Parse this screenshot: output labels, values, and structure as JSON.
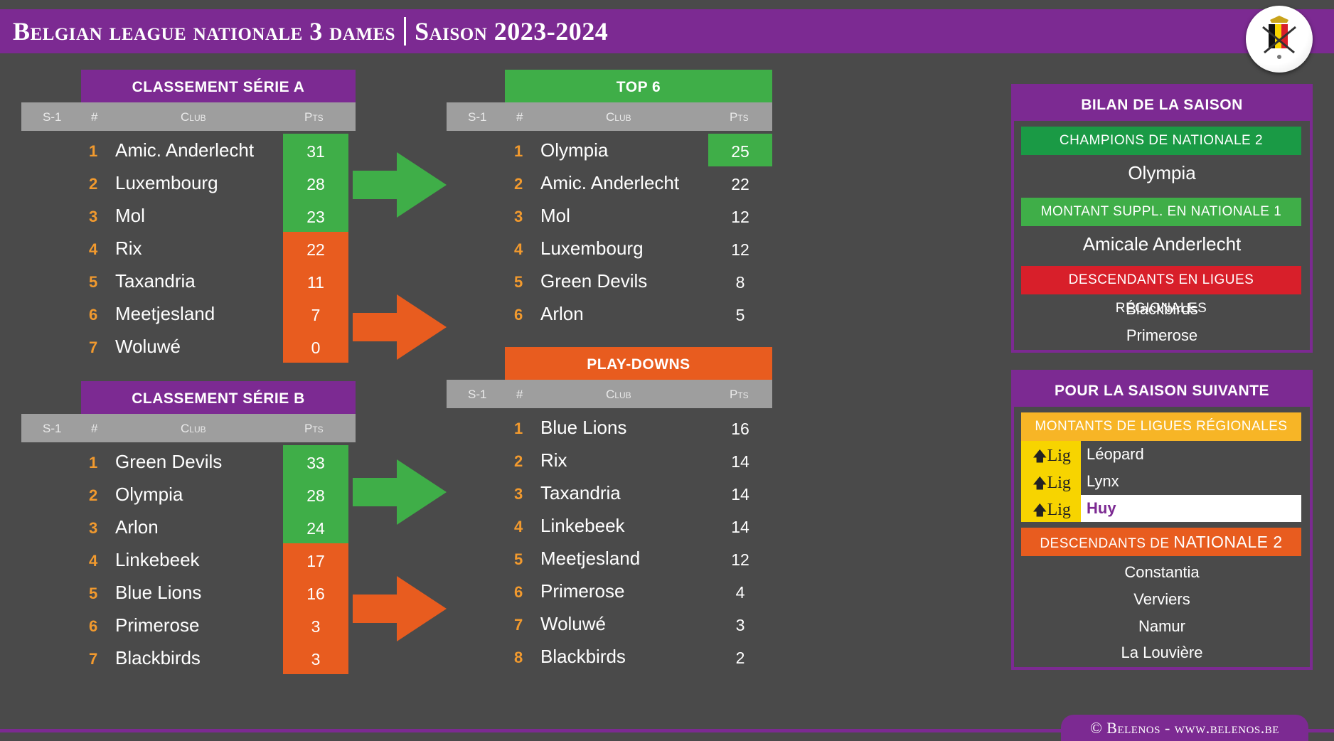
{
  "header": {
    "title": "Belgian league nationale 3 dames",
    "season": "Saison 2023-2024"
  },
  "columns": {
    "s1": "S-1",
    "num": "#",
    "club": "Club",
    "pts": "Pts"
  },
  "serie_a": {
    "title": "CLASSEMENT SÉRIE A",
    "rows": [
      {
        "rank": "1",
        "club": "Amic. Anderlecht",
        "pts": "31"
      },
      {
        "rank": "2",
        "club": "Luxembourg",
        "pts": "28"
      },
      {
        "rank": "3",
        "club": "Mol",
        "pts": "23"
      },
      {
        "rank": "4",
        "club": "Rix",
        "pts": "22"
      },
      {
        "rank": "5",
        "club": "Taxandria",
        "pts": "11"
      },
      {
        "rank": "6",
        "club": "Meetjesland",
        "pts": "7"
      },
      {
        "rank": "7",
        "club": "Woluwé",
        "pts": "0"
      }
    ]
  },
  "serie_b": {
    "title": "CLASSEMENT SÉRIE B",
    "rows": [
      {
        "rank": "1",
        "club": "Green Devils",
        "pts": "33"
      },
      {
        "rank": "2",
        "club": "Olympia",
        "pts": "28"
      },
      {
        "rank": "3",
        "club": "Arlon",
        "pts": "24"
      },
      {
        "rank": "4",
        "club": "Linkebeek",
        "pts": "17"
      },
      {
        "rank": "5",
        "club": "Blue Lions",
        "pts": "16"
      },
      {
        "rank": "6",
        "club": "Primerose",
        "pts": "3"
      },
      {
        "rank": "7",
        "club": "Blackbirds",
        "pts": "3"
      }
    ]
  },
  "top6": {
    "title": "TOP 6",
    "rows": [
      {
        "rank": "1",
        "club": "Olympia",
        "pts": "25"
      },
      {
        "rank": "2",
        "club": "Amic. Anderlecht",
        "pts": "22"
      },
      {
        "rank": "3",
        "club": "Mol",
        "pts": "12"
      },
      {
        "rank": "4",
        "club": "Luxembourg",
        "pts": "12"
      },
      {
        "rank": "5",
        "club": "Green Devils",
        "pts": "8"
      },
      {
        "rank": "6",
        "club": "Arlon",
        "pts": "5"
      }
    ]
  },
  "playdowns": {
    "title": "PLAY-DOWNS",
    "rows": [
      {
        "rank": "1",
        "club": "Blue Lions",
        "pts": "16"
      },
      {
        "rank": "2",
        "club": "Rix",
        "pts": "14"
      },
      {
        "rank": "3",
        "club": "Taxandria",
        "pts": "14"
      },
      {
        "rank": "4",
        "club": "Linkebeek",
        "pts": "14"
      },
      {
        "rank": "5",
        "club": "Meetjesland",
        "pts": "12"
      },
      {
        "rank": "6",
        "club": "Primerose",
        "pts": "4"
      },
      {
        "rank": "7",
        "club": "Woluwé",
        "pts": "3"
      },
      {
        "rank": "8",
        "club": "Blackbirds",
        "pts": "2"
      }
    ]
  },
  "bilan": {
    "title": "BILAN DE LA SAISON",
    "champions_label": "CHAMPIONS DE NATIONALE 2",
    "champion": "Olympia",
    "montant_label": "MONTANT SUPPL. EN NATIONALE 1",
    "montant": "Amicale Anderlecht",
    "descendants_label": "DESCENDANTS EN LIGUES RÉGIONALES",
    "descendants": [
      "Blackbirds",
      "Primerose"
    ]
  },
  "next_season": {
    "title": "POUR LA SAISON SUIVANTE",
    "montants_label": "MONTANTS DE LIGUES RÉGIONALES",
    "lig_tag": "Lig",
    "montants": [
      "Léopard",
      "Lynx",
      "Huy"
    ],
    "descendants_label_pre": "DESCENDANTS DE ",
    "descendants_label_big": "NATIONALE 2",
    "descendants": [
      "Constantia",
      "Verviers",
      "Namur",
      "La Louvière"
    ]
  },
  "footer": "© Belenos - www.belenos.be",
  "colors": {
    "purple": "#7c2a92",
    "green": "#3fae48",
    "orange": "#e85c1f",
    "red": "#d81f2a",
    "yellow": "#f7b526",
    "rank_orange": "#f29a2e",
    "background": "#4a4a4a"
  }
}
